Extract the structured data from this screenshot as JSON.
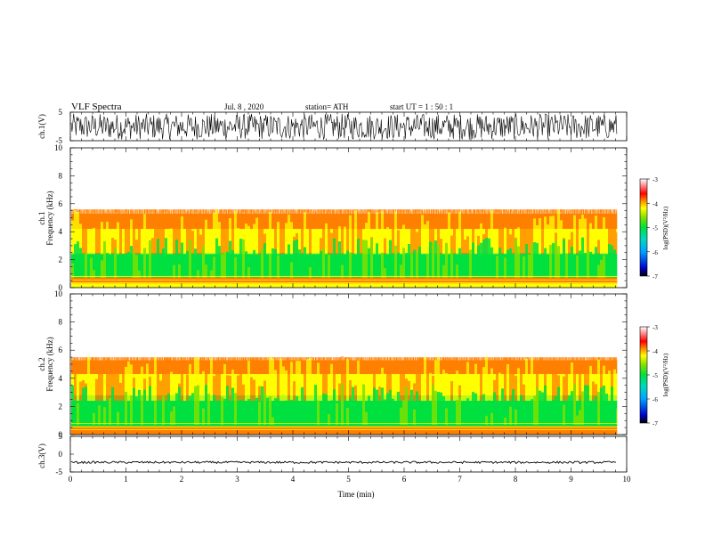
{
  "header": {
    "title": "VLF Spectra",
    "date": "Jul. 8 , 2020",
    "station": "station= ATH",
    "start_ut": "start UT = 1 : 50 : 1"
  },
  "chart_data": [
    {
      "type": "line",
      "name": "ch1-waveform",
      "ylabel": "ch.1(V)",
      "xlim": [
        0,
        10
      ],
      "ylim": [
        -5,
        5
      ],
      "yticks": [
        "5",
        "-5"
      ],
      "data_end_min": 9.83,
      "amplitude_range_v": [
        -4.6,
        4.5
      ]
    },
    {
      "type": "heatmap",
      "name": "ch1-spectrogram",
      "ylabel": "ch.1\nFrequency (kHz)",
      "xlim": [
        0,
        10
      ],
      "ylim": [
        0,
        10
      ],
      "yticks": [
        "0",
        "2",
        "4",
        "6",
        "8",
        "10"
      ],
      "colorbar": {
        "label": "log(PSD)(V²/Hz)",
        "range": [
          -7,
          -3
        ],
        "ticks": [
          "-3",
          "-4",
          "-5",
          "-6",
          "-7"
        ]
      },
      "bands_khz": [
        {
          "range": [
            0,
            0.3
          ],
          "log_psd": -4.6
        },
        {
          "range": [
            0.3,
            0.9
          ],
          "log_psd": -4.0
        },
        {
          "range": [
            0.9,
            2.5
          ],
          "log_psd": -5.2
        },
        {
          "range": [
            2.5,
            4.2
          ],
          "log_psd": -4.6
        },
        {
          "range": [
            4.2,
            5.6
          ],
          "log_psd": -4.0
        },
        {
          "range": [
            5.6,
            10
          ],
          "log_psd": -3.2
        }
      ]
    },
    {
      "type": "heatmap",
      "name": "ch2-spectrogram",
      "ylabel": "ch.2\nFrequency (kHz)",
      "xlim": [
        0,
        10
      ],
      "ylim": [
        0,
        10
      ],
      "yticks": [
        "0",
        "2",
        "4",
        "6",
        "8",
        "10"
      ],
      "colorbar": {
        "label": "log(PSD)(V²/Hz)",
        "range": [
          -7,
          -3
        ],
        "ticks": [
          "-3",
          "-4",
          "-5",
          "-6",
          "-7"
        ]
      },
      "bands_khz": [
        {
          "range": [
            0,
            0.6
          ],
          "log_psd": -4.0
        },
        {
          "range": [
            0.6,
            2.8
          ],
          "log_psd": -5.1
        },
        {
          "range": [
            2.8,
            4.3
          ],
          "log_psd": -4.6
        },
        {
          "range": [
            4.3,
            5.5
          ],
          "log_psd": -4.0
        },
        {
          "range": [
            5.5,
            10
          ],
          "log_psd": -3.2
        }
      ]
    },
    {
      "type": "line",
      "name": "ch3-waveform",
      "ylabel": "ch.3(V)",
      "xlabel": "Time (min)",
      "xlim": [
        0,
        10
      ],
      "ylim": [
        -5,
        5
      ],
      "yticks": [
        "5",
        "0",
        "-5"
      ],
      "xticks": [
        "0",
        "1",
        "2",
        "3",
        "4",
        "5",
        "6",
        "7",
        "8",
        "9",
        "10"
      ],
      "data_end_min": 9.83,
      "level_v": -2.3
    }
  ],
  "colors": {
    "colormap": [
      "#000000",
      "#0000c8",
      "#00a0ff",
      "#00d8c0",
      "#00e040",
      "#7ce000",
      "#ffff00",
      "#ff8000",
      "#ff0000",
      "#ffffff"
    ],
    "trace": "#000000",
    "background": "#ffffff"
  }
}
